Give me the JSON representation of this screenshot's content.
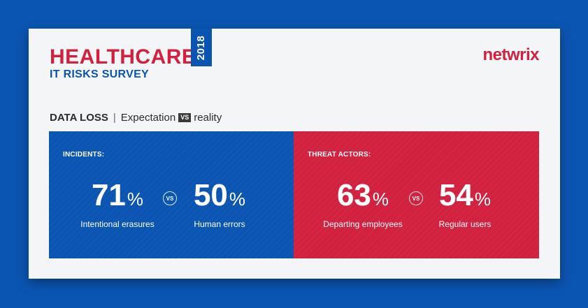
{
  "header": {
    "title": "HEALTHCARE",
    "subtitle": "IT RISKS SURVEY",
    "year": "2018",
    "brand": "netwrix"
  },
  "section": {
    "title": "DATA LOSS",
    "separator": "|",
    "left": "Expectation",
    "vs": "VS",
    "right": "reality"
  },
  "panels": [
    {
      "label": "INCIDENTS:",
      "color": "#0b55b2",
      "vs": "VS",
      "stats": [
        {
          "value": "71",
          "unit": "%",
          "caption": "Intentional erasures"
        },
        {
          "value": "50",
          "unit": "%",
          "caption": "Human errors"
        }
      ]
    },
    {
      "label": "THREAT ACTORS:",
      "color": "#d1213f",
      "vs": "VS",
      "stats": [
        {
          "value": "63",
          "unit": "%",
          "caption": "Departing employees"
        },
        {
          "value": "54",
          "unit": "%",
          "caption": "Regular users"
        }
      ]
    }
  ],
  "colors": {
    "background": "#0b55b2",
    "card": "#f4f5f7",
    "accent_red": "#d1213f",
    "accent_blue": "#0b55b2"
  }
}
